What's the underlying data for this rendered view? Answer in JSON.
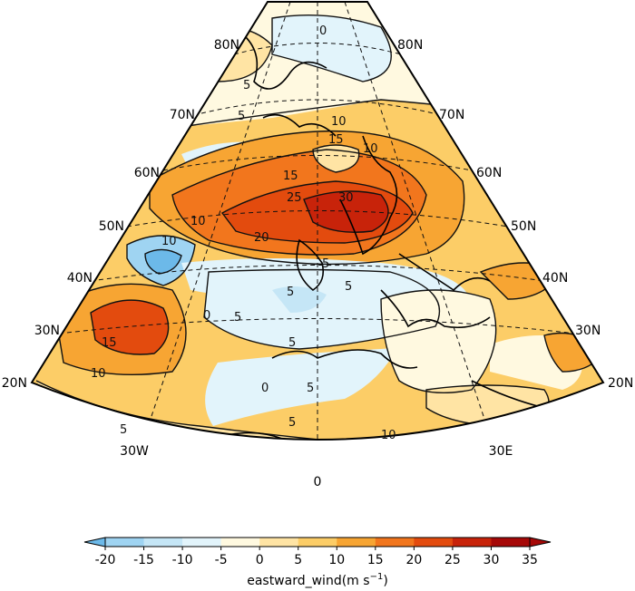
{
  "map": {
    "lat_labels_left": [
      "80N",
      "70N",
      "60N",
      "50N",
      "40N",
      "30N",
      "20N"
    ],
    "lat_labels_right": [
      "80N",
      "70N",
      "60N",
      "50N",
      "40N",
      "30N",
      "20N"
    ],
    "lon_labels": [
      "30W",
      "0",
      "30E"
    ],
    "contour_labels": [
      "0",
      "5",
      "5",
      "10",
      "10",
      "15",
      "15",
      "20",
      "25",
      "30",
      "10",
      "5",
      "5",
      "5",
      "5",
      "0",
      "5",
      "10",
      "15",
      "10",
      "5",
      "10",
      "5",
      "0",
      "5"
    ]
  },
  "colorbar": {
    "ticks": [
      "-20",
      "-15",
      "-10",
      "-5",
      "0",
      "5",
      "10",
      "15",
      "20",
      "25",
      "30",
      "35"
    ],
    "label": "eastward_wind(m s",
    "label_sup": "−1",
    "label_end": ")",
    "colors": [
      "#6cb9e9",
      "#9fd4f2",
      "#c5e6f6",
      "#e2f4fb",
      "#fff9e0",
      "#ffe4a4",
      "#fccd67",
      "#f7a533",
      "#f2761d",
      "#e34b0e",
      "#c8230a",
      "#a60807"
    ]
  }
}
